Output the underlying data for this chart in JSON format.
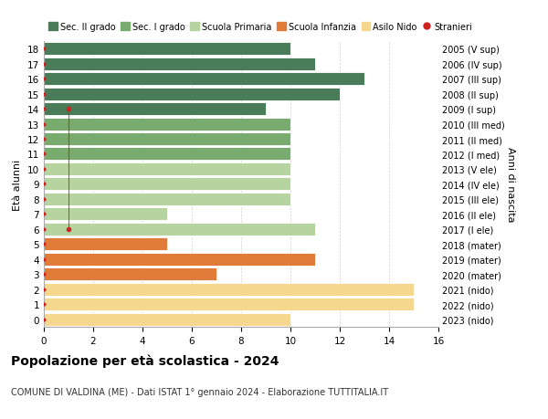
{
  "ages": [
    18,
    17,
    16,
    15,
    14,
    13,
    12,
    11,
    10,
    9,
    8,
    7,
    6,
    5,
    4,
    3,
    2,
    1,
    0
  ],
  "years": [
    "2005 (V sup)",
    "2006 (IV sup)",
    "2007 (III sup)",
    "2008 (II sup)",
    "2009 (I sup)",
    "2010 (III med)",
    "2011 (II med)",
    "2012 (I med)",
    "2013 (V ele)",
    "2014 (IV ele)",
    "2015 (III ele)",
    "2016 (II ele)",
    "2017 (I ele)",
    "2018 (mater)",
    "2019 (mater)",
    "2020 (mater)",
    "2021 (nido)",
    "2022 (nido)",
    "2023 (nido)"
  ],
  "values": [
    10,
    11,
    13,
    12,
    9,
    10,
    10,
    10,
    10,
    10,
    10,
    5,
    11,
    5,
    11,
    7,
    15,
    15,
    10
  ],
  "colors": [
    "#4a7c59",
    "#4a7c59",
    "#4a7c59",
    "#4a7c59",
    "#4a7c59",
    "#7aab6e",
    "#7aab6e",
    "#7aab6e",
    "#b5d4a0",
    "#b5d4a0",
    "#b5d4a0",
    "#b5d4a0",
    "#b5d4a0",
    "#e07b39",
    "#e07b39",
    "#e07b39",
    "#f5d78e",
    "#f5d78e",
    "#f5d78e"
  ],
  "stranieri_x": [
    0,
    0,
    0,
    0,
    1,
    0,
    0,
    0,
    0,
    0,
    0,
    0,
    1,
    0,
    0,
    0,
    0,
    0,
    0
  ],
  "legend_labels": [
    "Sec. II grado",
    "Sec. I grado",
    "Scuola Primaria",
    "Scuola Infanzia",
    "Asilo Nido",
    "Stranieri"
  ],
  "legend_colors": [
    "#4a7c59",
    "#7aab6e",
    "#b5d4a0",
    "#e07b39",
    "#f5d78e",
    "#cc2222"
  ],
  "title": "Popolazione per età scolastica - 2024",
  "subtitle": "COMUNE DI VALDINA (ME) - Dati ISTAT 1° gennaio 2024 - Elaborazione TUTTITALIA.IT",
  "xlabel_left": "Età alunni",
  "xlabel_right": "Anni di nascita",
  "xlim": [
    0,
    16
  ],
  "xticks": [
    0,
    2,
    4,
    6,
    8,
    10,
    12,
    14,
    16
  ],
  "background_color": "#ffffff"
}
